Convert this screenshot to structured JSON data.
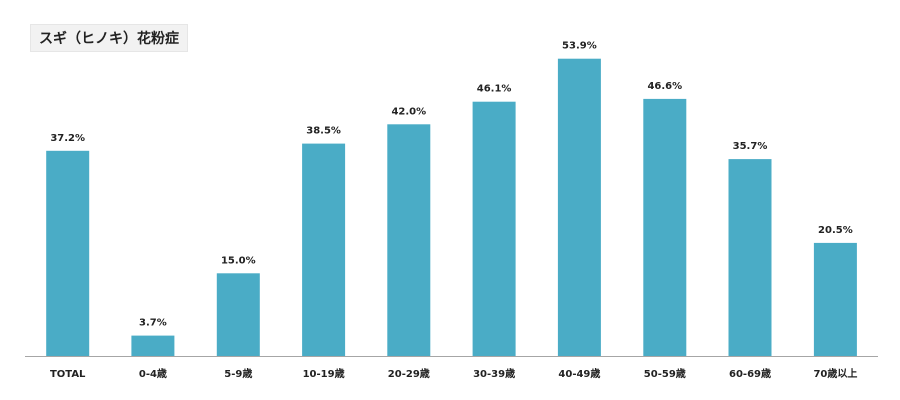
{
  "chart_data": {
    "type": "bar",
    "title": "スギ（ヒノキ）花粉症",
    "categories": [
      "TOTAL",
      "0-4歳",
      "5-9歳",
      "10-19歳",
      "20-29歳",
      "30-39歳",
      "40-49歳",
      "50-59歳",
      "60-69歳",
      "70歳以上"
    ],
    "values": [
      37.2,
      3.7,
      15.0,
      38.5,
      42.0,
      46.1,
      53.9,
      46.6,
      35.7,
      20.5
    ],
    "value_labels": [
      "37.2%",
      "3.7%",
      "15.0%",
      "38.5%",
      "42.0%",
      "46.1%",
      "53.9%",
      "46.6%",
      "35.7%",
      "20.5%"
    ],
    "ylim": [
      0,
      60
    ],
    "grid": false,
    "legend": "none",
    "bar_color": "#4aacc6",
    "axis_color": "#a6a6a6"
  }
}
